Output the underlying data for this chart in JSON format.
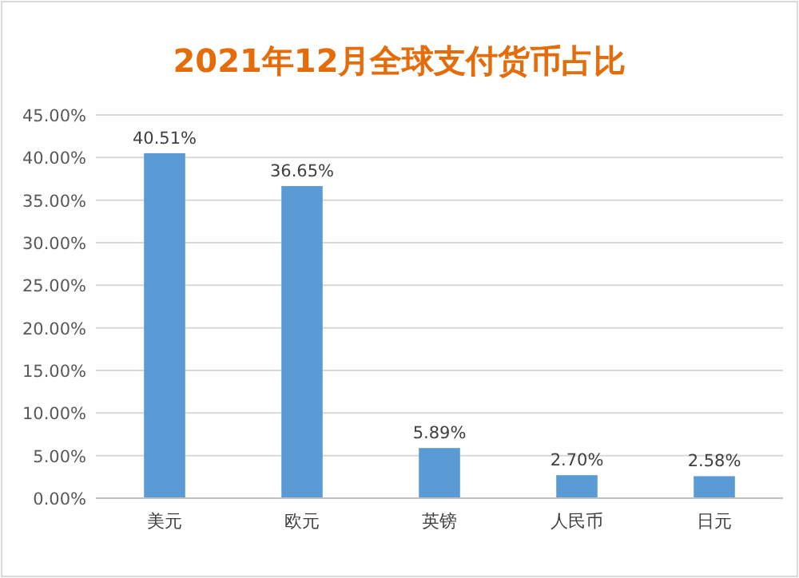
{
  "chart_data": {
    "type": "bar",
    "title": "2021年12月全球支付货币占比",
    "categories": [
      "美元",
      "欧元",
      "英镑",
      "人民币",
      "日元"
    ],
    "values": [
      40.51,
      36.65,
      5.89,
      2.7,
      2.58
    ],
    "value_labels": [
      "40.51%",
      "36.65%",
      "5.89%",
      "2.70%",
      "2.58%"
    ],
    "color": "#5b9bd5",
    "ylim": [
      0,
      45
    ],
    "yticks": [
      {
        "value": 0,
        "label": "0.00%"
      },
      {
        "value": 5,
        "label": "5.00%"
      },
      {
        "value": 10,
        "label": "10.00%"
      },
      {
        "value": 15,
        "label": "15.00%"
      },
      {
        "value": 20,
        "label": "20.00%"
      },
      {
        "value": 25,
        "label": "25.00%"
      },
      {
        "value": 30,
        "label": "30.00%"
      },
      {
        "value": 35,
        "label": "35.00%"
      },
      {
        "value": 40,
        "label": "40.00%"
      },
      {
        "value": 45,
        "label": "45.00%"
      }
    ],
    "grid": "y"
  }
}
